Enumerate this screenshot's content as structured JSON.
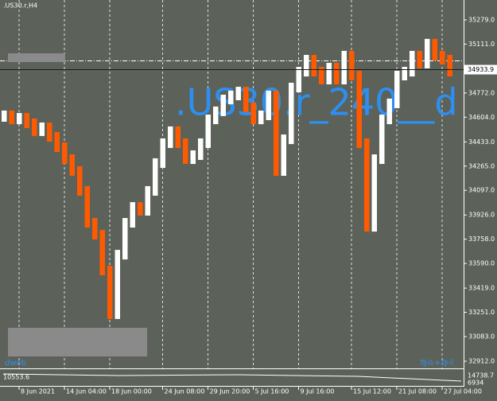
{
  "chart_data": {
    "type": "step",
    "title": ".US30.r,H4",
    "watermark": ".US30.r_240__d",
    "corner_left": "dweb",
    "corner_right": "♍♎+♍♌",
    "indicator": {
      "label": "10553.6",
      "max": "14738.7",
      "min": "6934"
    },
    "current_price": {
      "value": 34933.9,
      "label": "34933.9"
    },
    "ylim": [
      32867.8,
      35416.9
    ],
    "yticks": [
      {
        "value": 35279,
        "label": "35279.0"
      },
      {
        "value": 35111,
        "label": "35111.0"
      },
      {
        "value": 34772,
        "label": "34772.0"
      },
      {
        "value": 34604,
        "label": "34604.0"
      },
      {
        "value": 34433,
        "label": "34433.0"
      },
      {
        "value": 34265,
        "label": "34265.0"
      },
      {
        "value": 34097,
        "label": "34097.0"
      },
      {
        "value": 33926,
        "label": "33926.0"
      },
      {
        "value": 33758,
        "label": "33758.0"
      },
      {
        "value": 33590,
        "label": "33590.0"
      },
      {
        "value": 33419,
        "label": "33419.0"
      },
      {
        "value": 33251,
        "label": "33251.0"
      },
      {
        "value": 33083,
        "label": "33083.0"
      },
      {
        "value": 32912,
        "label": "32912.0"
      }
    ],
    "xticks": [
      {
        "value": 2,
        "label": "8 Jun 2021"
      },
      {
        "value": 8,
        "label": "14 Jun 04:00"
      },
      {
        "value": 14,
        "label": "18 Jun 00:00"
      },
      {
        "value": 21,
        "label": "24 Jun 08:00"
      },
      {
        "value": 27,
        "label": "29 Jun 20:00"
      },
      {
        "value": 33,
        "label": "5 Jul 16:00"
      },
      {
        "value": 39,
        "label": "9 Jul 16:00"
      },
      {
        "value": 46,
        "label": "15 Jul 12:00"
      },
      {
        "value": 52,
        "label": "21 Jul 08:00"
      },
      {
        "value": 58,
        "label": "27 Jul 04:00"
      }
    ],
    "up_color": "#ffffff",
    "down_color": "#ff5a00",
    "values": [
      34617,
      34589,
      34600,
      34562,
      34507,
      34534,
      34468,
      34396,
      34313,
      34231,
      34093,
      33872,
      33789,
      33541,
      33238,
      33651,
      33872,
      33982,
      33955,
      34093,
      34286,
      34424,
      34507,
      34424,
      34313,
      34341,
      34424,
      34589,
      34645,
      34727,
      34755,
      34782,
      34672,
      34589,
      34617,
      34755,
      34231,
      34451,
      34810,
      34920,
      35003,
      34920,
      34865,
      34948,
      34865,
      35031,
      34893,
      34424,
      33844,
      34313,
      34589,
      34700,
      34893,
      34920,
      35031,
      34976,
      35114,
      35031,
      35003,
      34920
    ]
  }
}
